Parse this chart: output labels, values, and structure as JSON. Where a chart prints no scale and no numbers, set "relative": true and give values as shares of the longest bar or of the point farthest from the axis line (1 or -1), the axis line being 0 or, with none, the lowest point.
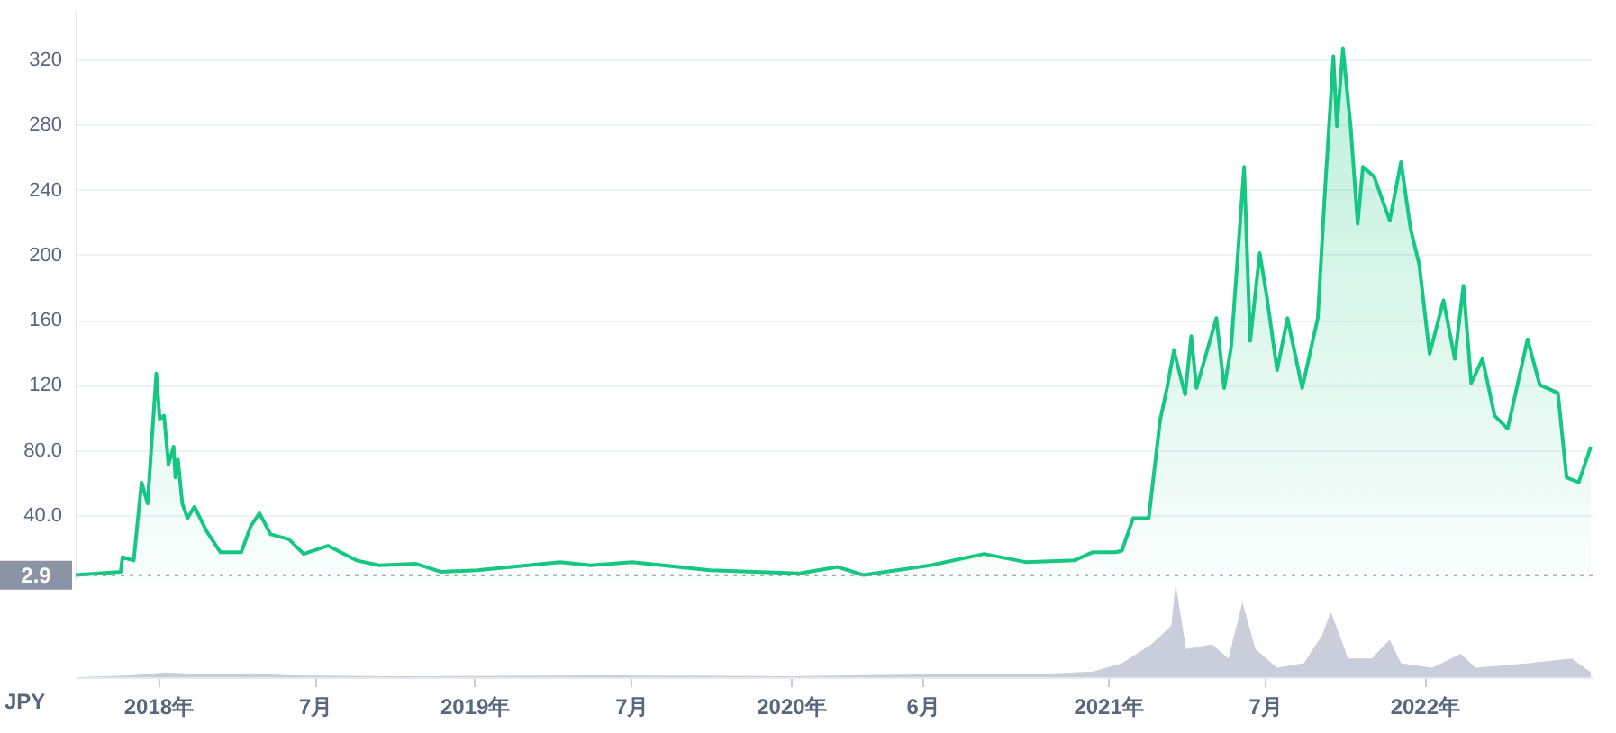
{
  "chart_data": [
    {
      "type": "area",
      "ylabel": "JPY",
      "xlim": [
        "2017-09-28",
        "2022-07-14"
      ],
      "ylim": [
        0,
        350
      ],
      "yticks": [
        {
          "value": 40,
          "label": "40.0"
        },
        {
          "value": 80,
          "label": "80.0"
        },
        120,
        160,
        200,
        240,
        280,
        320
      ],
      "xticks": [
        {
          "value": "2018-01-01",
          "label": null
        },
        {
          "value": "2018-07-01",
          "label": null
        },
        {
          "value": "2019-01-01",
          "label": null
        },
        {
          "value": "2019-07-01",
          "label": null
        },
        {
          "value": "2020-01-01",
          "label": null
        },
        {
          "value": "2020-06-01",
          "label": null
        },
        {
          "value": "2021-01-01",
          "label": null
        },
        {
          "value": "2021-07-01",
          "label": null
        },
        {
          "value": "2022-01-01",
          "label": null
        }
      ],
      "grid": "y",
      "tick_labels": "y",
      "ref_lines": [
        {
          "axis": "y",
          "value": 2.9,
          "label": "2.9",
          "color": "#8c93a5",
          "line_style": "dotted"
        }
      ],
      "series": [
        {
          "color": "#16c784",
          "x": [
            "2017-09-28",
            "2017-11-19",
            "2017-11-21",
            "2017-12-04",
            "2017-12-13",
            "2017-12-20",
            "2017-12-30",
            "2018-01-03",
            "2018-01-08",
            "2018-01-13",
            "2018-01-19",
            "2018-01-21",
            "2018-01-24",
            "2018-01-29",
            "2018-02-04",
            "2018-02-12",
            "2018-02-26",
            "2018-03-14",
            "2018-03-28",
            "2018-04-07",
            "2018-04-18",
            "2018-04-28",
            "2018-05-11",
            "2018-06-01",
            "2018-06-18",
            "2018-07-16",
            "2018-08-18",
            "2018-09-13",
            "2018-10-25",
            "2018-11-23",
            "2019-01-04",
            "2019-04-10",
            "2019-05-15",
            "2019-07-02",
            "2019-09-30",
            "2020-01-11",
            "2020-02-24",
            "2020-03-25",
            "2020-06-10",
            "2020-08-11",
            "2020-09-28",
            "2020-11-23",
            "2020-12-14",
            "2021-01-10",
            "2021-01-17",
            "2021-01-30",
            "2021-02-17",
            "2021-03-02",
            "2021-03-10",
            "2021-03-18",
            "2021-03-31",
            "2021-04-07",
            "2021-04-13",
            "2021-05-06",
            "2021-05-15",
            "2021-05-23",
            "2021-06-07",
            "2021-06-14",
            "2021-06-25",
            "2021-07-03",
            "2021-07-15",
            "2021-07-27",
            "2021-08-13",
            "2021-08-31",
            "2021-09-08",
            "2021-09-18",
            "2021-09-22",
            "2021-09-29",
            "2021-10-08",
            "2021-10-16",
            "2021-10-22",
            "2021-11-04",
            "2021-11-22",
            "2021-12-05",
            "2021-12-16",
            "2021-12-26",
            "2022-01-07",
            "2022-01-23",
            "2022-02-05",
            "2022-02-15",
            "2022-02-24",
            "2022-03-09",
            "2022-03-23",
            "2022-04-07",
            "2022-04-30",
            "2022-05-14",
            "2022-06-04",
            "2022-06-14",
            "2022-06-28",
            "2022-07-12"
          ],
          "values": [
            3,
            5,
            14,
            12,
            60,
            47,
            127,
            99,
            101,
            71,
            82,
            63,
            74,
            47,
            38,
            45,
            30,
            17,
            17,
            17,
            33,
            41,
            28,
            25,
            16,
            21,
            12,
            9,
            10,
            5,
            6,
            11,
            9,
            11,
            6,
            4,
            8,
            3,
            9,
            16,
            11,
            12,
            17,
            17,
            18,
            38,
            38,
            98,
            118,
            141,
            114,
            150,
            118,
            161,
            118,
            143,
            254,
            147,
            201,
            175,
            129,
            161,
            118,
            161,
            237,
            322,
            279,
            327,
            278,
            219,
            254,
            248,
            221,
            257,
            216,
            194,
            139,
            172,
            136,
            181,
            121,
            136,
            101,
            93,
            148,
            120,
            115,
            63,
            60,
            82
          ]
        }
      ]
    },
    {
      "type": "area",
      "relative": true,
      "xlim": [
        "2017-09-28",
        "2022-07-14"
      ],
      "xticks": [
        {
          "value": "2018-01-01",
          "label": "2018年"
        },
        {
          "value": "2018-07-01",
          "label": "7月"
        },
        {
          "value": "2019-01-01",
          "label": "2019年"
        },
        {
          "value": "2019-07-01",
          "label": "7月"
        },
        {
          "value": "2020-01-01",
          "label": "2020年"
        },
        {
          "value": "2020-06-01",
          "label": "6月"
        },
        {
          "value": "2021-01-01",
          "label": "2021年"
        },
        {
          "value": "2021-07-01",
          "label": "7月"
        },
        {
          "value": "2022-01-01",
          "label": "2022年"
        }
      ],
      "tick_labels": "x",
      "series": [
        {
          "color": "#c9ceda",
          "x": [
            "2017-09-28",
            "2017-12-01",
            "2018-01-10",
            "2018-03-01",
            "2018-04-20",
            "2018-06-01",
            "2018-10-01",
            "2019-06-01",
            "2020-01-01",
            "2020-06-01",
            "2020-10-01",
            "2020-12-15",
            "2021-01-17",
            "2021-02-20",
            "2021-03-15",
            "2021-03-20",
            "2021-04-01",
            "2021-05-01",
            "2021-05-20",
            "2021-06-05",
            "2021-06-20",
            "2021-07-15",
            "2021-08-15",
            "2021-09-05",
            "2021-09-15",
            "2021-10-05",
            "2021-11-01",
            "2021-11-22",
            "2021-12-05",
            "2022-01-10",
            "2022-02-12",
            "2022-03-01",
            "2022-05-01",
            "2022-06-20",
            "2022-07-12"
          ],
          "values": [
            0,
            0.02,
            0.05,
            0.03,
            0.04,
            0.02,
            0.01,
            0.02,
            0.01,
            0.03,
            0.03,
            0.06,
            0.15,
            0.35,
            0.55,
            1.0,
            0.3,
            0.35,
            0.2,
            0.8,
            0.3,
            0.1,
            0.15,
            0.45,
            0.7,
            0.2,
            0.2,
            0.4,
            0.15,
            0.1,
            0.25,
            0.1,
            0.15,
            0.2,
            0.05
          ]
        }
      ]
    }
  ]
}
